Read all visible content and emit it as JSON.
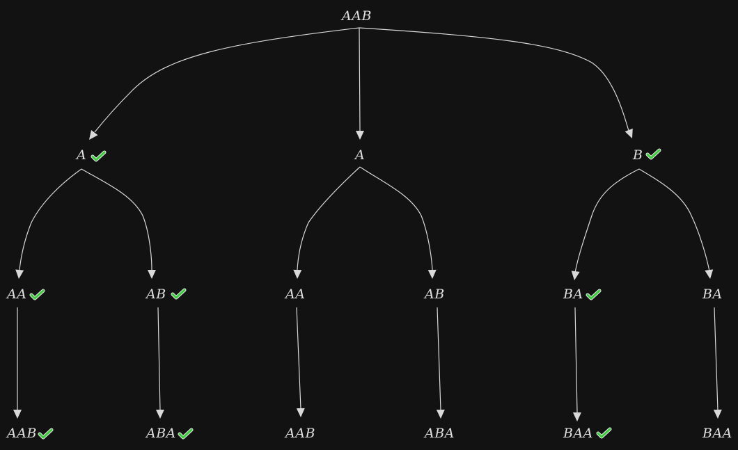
{
  "colors": {
    "background": "#121212",
    "text": "#e0e0e0",
    "edge": "#d9d9d9",
    "check": "#3ec93e",
    "check_outline": "#eaeaea"
  },
  "root": {
    "label": "AAB",
    "checked": false
  },
  "level1": [
    {
      "label": "A",
      "checked": true
    },
    {
      "label": "A",
      "checked": false
    },
    {
      "label": "B",
      "checked": true
    }
  ],
  "level2": [
    {
      "label": "AA",
      "checked": true
    },
    {
      "label": "AB",
      "checked": true
    },
    {
      "label": "AA",
      "checked": false
    },
    {
      "label": "AB",
      "checked": false
    },
    {
      "label": "BA",
      "checked": true
    },
    {
      "label": "BA",
      "checked": false
    }
  ],
  "level3": [
    {
      "label": "AAB",
      "checked": true
    },
    {
      "label": "ABA",
      "checked": true
    },
    {
      "label": "AAB",
      "checked": false
    },
    {
      "label": "ABA",
      "checked": false
    },
    {
      "label": "BAA",
      "checked": true
    },
    {
      "label": "BAA",
      "checked": false
    }
  ]
}
